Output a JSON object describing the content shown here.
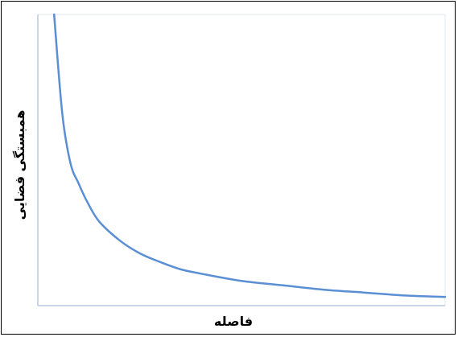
{
  "chart_data": {
    "type": "line",
    "title": "",
    "xlabel": "فاصله",
    "ylabel": "همبستگی فضایی",
    "xlim": [
      0,
      1
    ],
    "ylim": [
      0,
      1
    ],
    "grid": false,
    "tick_labels": false,
    "series": [
      {
        "color": "#5b8fd4",
        "x": [
          0.04,
          0.06,
          0.08,
          0.1,
          0.12,
          0.15,
          0.2,
          0.25,
          0.3,
          0.35,
          0.4,
          0.5,
          0.6,
          0.7,
          0.8,
          0.9,
          1.0
        ],
        "y": [
          1.0,
          0.66,
          0.49,
          0.42,
          0.36,
          0.29,
          0.225,
          0.18,
          0.15,
          0.125,
          0.11,
          0.085,
          0.07,
          0.055,
          0.045,
          0.035,
          0.03
        ]
      }
    ]
  },
  "colors": {
    "axis": "#b8c9dd",
    "frame": "#000000",
    "line": "#5b8fd4"
  }
}
